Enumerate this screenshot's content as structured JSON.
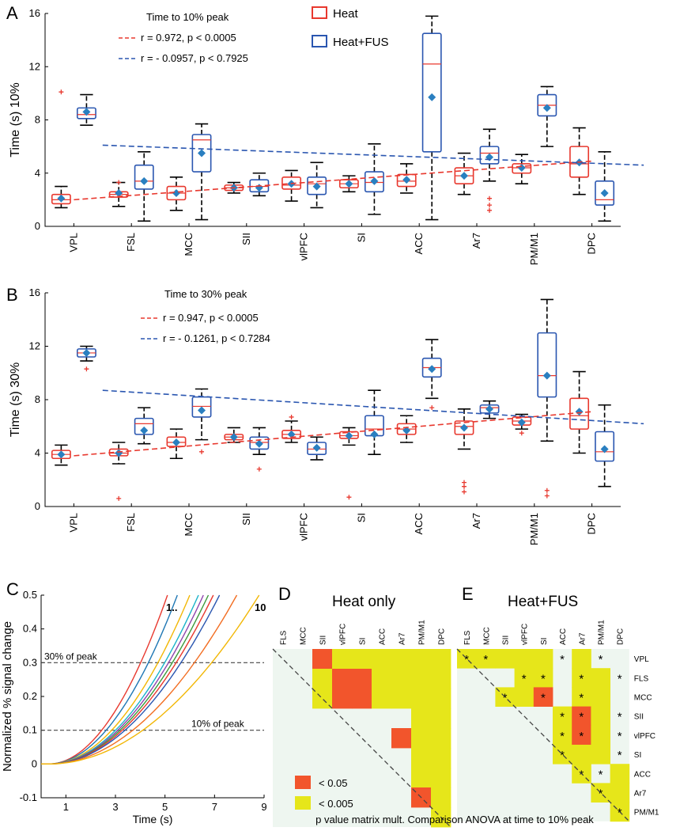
{
  "colors": {
    "heat": "#e8382e",
    "fus": "#2a56b0",
    "marker": "#2a7fc0",
    "orange": "#f2552c",
    "yellow": "#e6e61a",
    "matrixBg": "#eef6f0"
  },
  "chart_data": [
    {
      "panel": "A",
      "type": "box",
      "title": "Time to 10% peak",
      "ylabel": "Time (s) 10%",
      "ylim": [
        0,
        16
      ],
      "yticks": [
        0,
        4,
        8,
        12,
        16
      ],
      "categories": [
        "VPL",
        "FSL",
        "MCC",
        "SII",
        "vlPFC",
        "SI",
        "ACC",
        "Ar7",
        "PM/M1",
        "DPC"
      ],
      "legend": [
        "Heat",
        "Heat+FUS"
      ],
      "series": [
        {
          "name": "Heat",
          "boxes": [
            {
              "wl": 1.4,
              "q1": 1.7,
              "med": 2.0,
              "q3": 2.4,
              "wh": 3.0,
              "mean": 2.1,
              "out": [
                10.1
              ]
            },
            {
              "wl": 1.5,
              "q1": 2.2,
              "med": 2.4,
              "q3": 2.6,
              "wh": 3.3,
              "mean": 2.5,
              "out": [
                3.3
              ]
            },
            {
              "wl": 1.2,
              "q1": 2.0,
              "med": 2.5,
              "q3": 3.0,
              "wh": 3.7,
              "mean": 2.5,
              "out": []
            },
            {
              "wl": 2.5,
              "q1": 2.7,
              "med": 2.9,
              "q3": 3.1,
              "wh": 3.3,
              "mean": 2.9,
              "out": []
            },
            {
              "wl": 1.9,
              "q1": 2.8,
              "med": 3.1,
              "q3": 3.7,
              "wh": 4.2,
              "mean": 3.2,
              "out": []
            },
            {
              "wl": 2.6,
              "q1": 2.9,
              "med": 3.2,
              "q3": 3.5,
              "wh": 3.8,
              "mean": 3.2,
              "out": []
            },
            {
              "wl": 2.5,
              "q1": 3.0,
              "med": 3.4,
              "q3": 3.9,
              "wh": 4.7,
              "mean": 3.5,
              "out": []
            },
            {
              "wl": 2.4,
              "q1": 3.2,
              "med": 3.8,
              "q3": 4.4,
              "wh": 5.5,
              "mean": 3.8,
              "out": []
            },
            {
              "wl": 3.2,
              "q1": 4.0,
              "med": 4.4,
              "q3": 4.7,
              "wh": 5.4,
              "mean": 4.4,
              "out": []
            },
            {
              "wl": 2.4,
              "q1": 3.7,
              "med": 4.7,
              "q3": 6.0,
              "wh": 7.4,
              "mean": 4.8,
              "out": []
            }
          ]
        },
        {
          "name": "Heat+FUS",
          "boxes": [
            {
              "wl": 7.6,
              "q1": 8.1,
              "med": 8.4,
              "q3": 8.9,
              "wh": 9.9,
              "mean": 8.6,
              "out": []
            },
            {
              "wl": 0.4,
              "q1": 2.8,
              "med": 3.4,
              "q3": 4.6,
              "wh": 5.6,
              "mean": 3.4,
              "out": []
            },
            {
              "wl": 0.5,
              "q1": 4.1,
              "med": 6.5,
              "q3": 6.9,
              "wh": 7.7,
              "mean": 5.5,
              "out": []
            },
            {
              "wl": 2.3,
              "q1": 2.6,
              "med": 3.0,
              "q3": 3.5,
              "wh": 4.0,
              "mean": 2.9,
              "out": []
            },
            {
              "wl": 1.4,
              "q1": 2.4,
              "med": 3.2,
              "q3": 3.7,
              "wh": 4.8,
              "mean": 3.0,
              "out": []
            },
            {
              "wl": 0.9,
              "q1": 2.6,
              "med": 3.3,
              "q3": 4.1,
              "wh": 6.2,
              "mean": 3.4,
              "out": []
            },
            {
              "wl": 0.5,
              "q1": 5.6,
              "med": 12.2,
              "q3": 14.5,
              "wh": 15.8,
              "mean": 9.7,
              "out": []
            },
            {
              "wl": 3.4,
              "q1": 4.7,
              "med": 5.5,
              "q3": 6.0,
              "wh": 7.3,
              "mean": 5.2,
              "out": [
                2.1,
                1.6,
                1.2
              ]
            },
            {
              "wl": 6.0,
              "q1": 8.3,
              "med": 9.1,
              "q3": 9.9,
              "wh": 10.5,
              "mean": 8.9,
              "out": []
            },
            {
              "wl": 0.4,
              "q1": 1.6,
              "med": 2.0,
              "q3": 3.4,
              "wh": 5.6,
              "mean": 2.5,
              "out": []
            }
          ]
        }
      ],
      "fits": [
        {
          "label": "r = 0.972, p < 0.0005",
          "from": [
            0,
            2.0
          ],
          "to": [
            9,
            4.9
          ]
        },
        {
          "label": "r = - 0.0957, p < 0.7925",
          "from": [
            0.5,
            6.1
          ],
          "to": [
            9.9,
            4.6
          ]
        }
      ]
    },
    {
      "panel": "B",
      "type": "box",
      "title": "Time to 30% peak",
      "ylabel": "Time (s) 30%",
      "ylim": [
        0,
        16
      ],
      "yticks": [
        0,
        4,
        8,
        12,
        16
      ],
      "categories": [
        "VPL",
        "FSL",
        "MCC",
        "SII",
        "vlPFC",
        "SI",
        "ACC",
        "Ar7",
        "PM/M1",
        "DPC"
      ],
      "series": [
        {
          "name": "Heat",
          "boxes": [
            {
              "wl": 3.1,
              "q1": 3.6,
              "med": 3.9,
              "q3": 4.2,
              "wh": 4.6,
              "mean": 3.9,
              "out": []
            },
            {
              "wl": 3.2,
              "q1": 3.8,
              "med": 4.0,
              "q3": 4.3,
              "wh": 4.8,
              "mean": 4.0,
              "out": [
                0.6
              ]
            },
            {
              "wl": 3.6,
              "q1": 4.5,
              "med": 4.8,
              "q3": 5.2,
              "wh": 5.8,
              "mean": 4.8,
              "out": []
            },
            {
              "wl": 4.8,
              "q1": 5.0,
              "med": 5.2,
              "q3": 5.4,
              "wh": 5.9,
              "mean": 5.2,
              "out": []
            },
            {
              "wl": 4.8,
              "q1": 5.1,
              "med": 5.4,
              "q3": 5.7,
              "wh": 6.4,
              "mean": 5.4,
              "out": [
                6.7
              ]
            },
            {
              "wl": 4.6,
              "q1": 5.1,
              "med": 5.3,
              "q3": 5.6,
              "wh": 5.9,
              "mean": 5.3,
              "out": [
                0.7
              ]
            },
            {
              "wl": 4.8,
              "q1": 5.4,
              "med": 5.8,
              "q3": 6.2,
              "wh": 6.8,
              "mean": 5.7,
              "out": []
            },
            {
              "wl": 4.3,
              "q1": 5.4,
              "med": 6.0,
              "q3": 6.4,
              "wh": 7.3,
              "mean": 5.9,
              "out": [
                1.8,
                1.5,
                1.1
              ]
            },
            {
              "wl": 5.8,
              "q1": 6.1,
              "med": 6.4,
              "q3": 6.7,
              "wh": 6.9,
              "mean": 6.3,
              "out": [
                5.5
              ]
            },
            {
              "wl": 4.0,
              "q1": 5.8,
              "med": 6.8,
              "q3": 8.1,
              "wh": 10.1,
              "mean": 7.1,
              "out": []
            }
          ]
        },
        {
          "name": "Heat+FUS",
          "boxes": [
            {
              "wl": 10.9,
              "q1": 11.2,
              "med": 11.5,
              "q3": 11.8,
              "wh": 12.0,
              "mean": 11.5,
              "out": [
                10.3
              ]
            },
            {
              "wl": 4.7,
              "q1": 5.4,
              "med": 6.2,
              "q3": 6.6,
              "wh": 7.4,
              "mean": 5.7,
              "out": []
            },
            {
              "wl": 5.0,
              "q1": 6.7,
              "med": 7.5,
              "q3": 8.2,
              "wh": 8.8,
              "mean": 7.2,
              "out": [
                4.1
              ]
            },
            {
              "wl": 3.9,
              "q1": 4.3,
              "med": 4.8,
              "q3": 5.2,
              "wh": 5.9,
              "mean": 4.7,
              "out": [
                2.8
              ]
            },
            {
              "wl": 3.5,
              "q1": 3.9,
              "med": 4.3,
              "q3": 4.8,
              "wh": 5.2,
              "mean": 4.4,
              "out": []
            },
            {
              "wl": 3.9,
              "q1": 5.3,
              "med": 5.8,
              "q3": 6.8,
              "wh": 8.7,
              "mean": 5.4,
              "out": []
            },
            {
              "wl": 8.1,
              "q1": 9.7,
              "med": 10.4,
              "q3": 11.1,
              "wh": 12.5,
              "mean": 10.3,
              "out": [
                7.4
              ]
            },
            {
              "wl": 6.6,
              "q1": 7.0,
              "med": 7.4,
              "q3": 7.6,
              "wh": 7.9,
              "mean": 7.3,
              "out": []
            },
            {
              "wl": 4.9,
              "q1": 8.2,
              "med": 9.8,
              "q3": 13.0,
              "wh": 15.5,
              "mean": 9.8,
              "out": [
                1.2,
                0.8
              ]
            },
            {
              "wl": 1.5,
              "q1": 3.4,
              "med": 4.1,
              "q3": 5.6,
              "wh": 7.6,
              "mean": 4.3,
              "out": []
            }
          ]
        }
      ],
      "fits": [
        {
          "label": "r = 0.947, p < 0.0005",
          "from": [
            0,
            3.8
          ],
          "to": [
            9,
            7.1
          ]
        },
        {
          "label": "r = - 0.1261, p < 0.7284",
          "from": [
            0.5,
            8.7
          ],
          "to": [
            9.9,
            6.2
          ]
        }
      ]
    },
    {
      "panel": "C",
      "type": "line",
      "xlabel": "Time (s)",
      "ylabel": "Normalized % signal change",
      "xlim": [
        0,
        9
      ],
      "ylim": [
        -0.1,
        0.5
      ],
      "xticks": [
        1,
        3,
        5,
        7,
        9
      ],
      "yticks": [
        -0.1,
        0,
        0.1,
        0.2,
        0.3,
        0.4,
        0.5
      ],
      "start_label": "1..",
      "end_label": "10",
      "ref_lines": [
        {
          "y": 0.3,
          "label": "30% of peak"
        },
        {
          "y": 0.1,
          "label": "10% of peak"
        }
      ],
      "curve_onset": 0.3,
      "curves": [
        {
          "color": "#e8382e",
          "t_end": 5.1
        },
        {
          "color": "#1f77b4",
          "t_end": 5.5
        },
        {
          "color": "#f2b705",
          "t_end": 6.0
        },
        {
          "color": "#19b3c9",
          "t_end": 6.35
        },
        {
          "color": "#8e44ad",
          "t_end": 6.55
        },
        {
          "color": "#3a9a3a",
          "t_end": 6.75
        },
        {
          "color": "#e8382e",
          "t_end": 6.95
        },
        {
          "color": "#2a56b0",
          "t_end": 7.2
        },
        {
          "color": "#f26d21",
          "t_end": 7.9
        },
        {
          "color": "#f2b705",
          "t_end": 8.8
        }
      ]
    },
    {
      "panel": "D",
      "type": "heatmap",
      "title": "Heat only",
      "col_labels": [
        "FLS",
        "MCC",
        "SII",
        "vlPFC",
        "SI",
        "ACC",
        "Ar7",
        "PM/M1",
        "DPC"
      ],
      "row_labels": [
        "VPL",
        "FLS",
        "MCC",
        "SII",
        "vlPFC",
        "SI",
        "ACC",
        "Ar7",
        "PM/M1"
      ],
      "legend": [
        {
          "code": 1,
          "label": "< 0.05"
        },
        {
          "code": 2,
          "label": "< 0.005"
        }
      ],
      "cells": [
        [
          0,
          0,
          1,
          2,
          2,
          2,
          2,
          2,
          2
        ],
        [
          0,
          0,
          2,
          1,
          1,
          2,
          2,
          2,
          2
        ],
        [
          0,
          0,
          2,
          1,
          1,
          2,
          2,
          2,
          2
        ],
        [
          0,
          0,
          0,
          0,
          0,
          0,
          0,
          2,
          2
        ],
        [
          0,
          0,
          0,
          0,
          0,
          0,
          1,
          2,
          2
        ],
        [
          0,
          0,
          0,
          0,
          0,
          0,
          0,
          2,
          2
        ],
        [
          0,
          0,
          0,
          0,
          0,
          0,
          0,
          2,
          2
        ],
        [
          0,
          0,
          0,
          0,
          0,
          0,
          0,
          1,
          2
        ],
        [
          0,
          0,
          0,
          0,
          0,
          0,
          0,
          0,
          2
        ]
      ]
    },
    {
      "panel": "E",
      "type": "heatmap",
      "title": "Heat+FUS",
      "col_labels": [
        "FLS",
        "MCC",
        "SII",
        "vlPFC",
        "SI",
        "ACC",
        "Ar7",
        "PM/M1",
        "DPC"
      ],
      "row_labels": [
        "VPL",
        "FLS",
        "MCC",
        "SII",
        "vlPFC",
        "SI",
        "ACC",
        "Ar7",
        "PM/M1"
      ],
      "cells": [
        [
          2,
          2,
          2,
          2,
          2,
          0,
          2,
          0,
          0
        ],
        [
          0,
          0,
          0,
          2,
          2,
          0,
          2,
          2,
          0
        ],
        [
          0,
          0,
          2,
          2,
          1,
          0,
          2,
          2,
          0
        ],
        [
          0,
          0,
          0,
          0,
          0,
          2,
          1,
          2,
          0
        ],
        [
          0,
          0,
          0,
          0,
          0,
          2,
          1,
          2,
          0
        ],
        [
          0,
          0,
          0,
          0,
          0,
          2,
          2,
          2,
          0
        ],
        [
          0,
          0,
          0,
          0,
          0,
          0,
          2,
          0,
          2
        ],
        [
          0,
          0,
          0,
          0,
          0,
          0,
          0,
          2,
          2
        ],
        [
          0,
          0,
          0,
          0,
          0,
          0,
          0,
          0,
          2
        ]
      ],
      "stars": [
        [
          1,
          1,
          0,
          0,
          0,
          1,
          0,
          1,
          0
        ],
        [
          0,
          0,
          0,
          1,
          1,
          0,
          1,
          0,
          1
        ],
        [
          0,
          0,
          1,
          0,
          1,
          0,
          1,
          0,
          0
        ],
        [
          0,
          0,
          0,
          0,
          0,
          1,
          1,
          0,
          1
        ],
        [
          0,
          0,
          0,
          0,
          0,
          1,
          1,
          0,
          1
        ],
        [
          0,
          0,
          0,
          0,
          0,
          1,
          0,
          0,
          1
        ],
        [
          0,
          0,
          0,
          0,
          0,
          0,
          1,
          1,
          0
        ],
        [
          0,
          0,
          0,
          0,
          0,
          0,
          0,
          1,
          0
        ],
        [
          0,
          0,
          0,
          0,
          0,
          0,
          0,
          0,
          1
        ]
      ]
    }
  ],
  "panel_letters": {
    "A": "A",
    "B": "B",
    "C": "C",
    "D": "D",
    "E": "E"
  },
  "star_glyph": "*",
  "caption": "p value matrix mult. Comparison ANOVA at  time to 10% peak"
}
